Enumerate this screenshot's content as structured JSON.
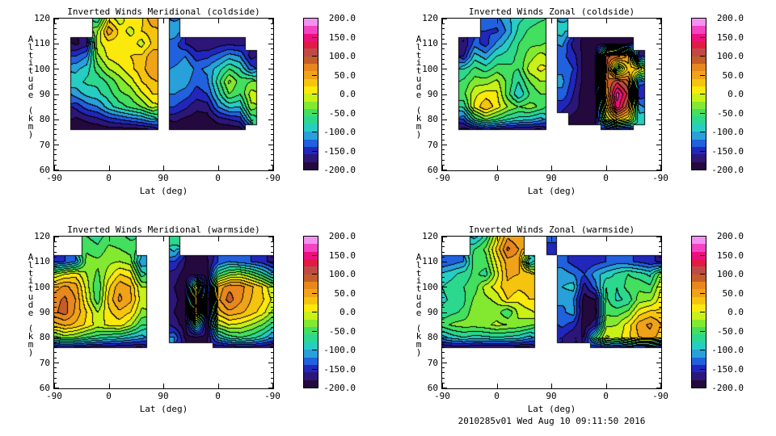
{
  "background_color": "#ffffff",
  "footer": "2010285v01 Wed Aug 10 09:11:50 2016",
  "axes": {
    "xlabel": "Lat (deg)",
    "ylabel": "Altitude (km)",
    "x_tick_labels": [
      "-90",
      "0",
      "90",
      "0",
      "-90"
    ],
    "y_tick_labels": [
      "120",
      "110",
      "100",
      "90",
      "80",
      "70",
      "60"
    ],
    "y_ticks": [
      120,
      110,
      100,
      90,
      80,
      70,
      60
    ],
    "ylim": [
      60,
      120
    ],
    "y_minor_step_km": 2
  },
  "colorbar": {
    "min": -200,
    "max": 200,
    "level_step": 20,
    "tick_labels": [
      "200.0",
      "150.0",
      "100.0",
      "50.0",
      "0.0",
      "-50.0",
      "-100.0",
      "-150.0",
      "-200.0"
    ],
    "tick_values": [
      200,
      150,
      100,
      50,
      0,
      -50,
      -100,
      -150,
      -200
    ],
    "band_colors_low_to_high": [
      "#23093e",
      "#2c1678",
      "#2127bb",
      "#2161de",
      "#28a0da",
      "#26cdc3",
      "#2cd88d",
      "#43df5f",
      "#82e930",
      "#c8f117",
      "#fbe90b",
      "#f5c40f",
      "#f0a318",
      "#e8871d",
      "#c45d28",
      "#bf4a45",
      "#e31a45",
      "#ee0f7e",
      "#f243c3",
      "#f291f0"
    ]
  },
  "grid": {
    "x_track_units": [
      0,
      0.2,
      0.4,
      0.6,
      0.8,
      1.0,
      1.2,
      1.4,
      1.6,
      1.8,
      2.0,
      2.2,
      2.4,
      2.6,
      2.8,
      3.0,
      3.2,
      3.4,
      3.6,
      3.8,
      4.0
    ],
    "x_track_note": "latitude along orbit track: -90 at 0, 0 at 1, 90 at 2, 0 at 3, -90 at 4",
    "altitudes_km": [
      120,
      115,
      110,
      105,
      100,
      95,
      90,
      85,
      80,
      76
    ],
    "value_units": "m/s"
  },
  "chart_data": [
    {
      "type": "filled_contour",
      "title": "Inverted Winds Meridional (coldside)",
      "values": [
        [
          null,
          null,
          null,
          null,
          -80,
          15,
          -15,
          20,
          15,
          60,
          null,
          -125,
          null,
          null,
          null,
          null,
          null,
          null,
          null,
          null,
          null
        ],
        [
          null,
          null,
          null,
          null,
          -20,
          55,
          15,
          -10,
          20,
          30,
          null,
          -105,
          null,
          null,
          null,
          null,
          null,
          null,
          null,
          null,
          null
        ],
        [
          null,
          null,
          -185,
          -170,
          -5,
          10,
          10,
          15,
          -10,
          25,
          null,
          -130,
          -160,
          -175,
          -180,
          -170,
          -165,
          -170,
          null,
          null,
          null
        ],
        [
          null,
          null,
          -140,
          -120,
          -25,
          5,
          15,
          20,
          25,
          55,
          null,
          -140,
          -120,
          -150,
          -145,
          -130,
          -110,
          -120,
          -170,
          null,
          null
        ],
        [
          null,
          null,
          -105,
          -90,
          -50,
          -20,
          -5,
          15,
          30,
          60,
          null,
          -115,
          -100,
          -125,
          -115,
          -90,
          -60,
          -80,
          -130,
          null,
          null
        ],
        [
          null,
          null,
          -90,
          -75,
          -75,
          -55,
          -30,
          -10,
          20,
          35,
          null,
          -105,
          -110,
          -135,
          -125,
          -70,
          -15,
          -50,
          -40,
          null,
          null
        ],
        [
          null,
          null,
          -110,
          -95,
          -85,
          -70,
          -45,
          -35,
          -5,
          20,
          null,
          -120,
          -130,
          -150,
          -140,
          -90,
          -40,
          -60,
          -10,
          null,
          null
        ],
        [
          null,
          null,
          -155,
          -130,
          -120,
          -90,
          -70,
          -55,
          -40,
          -10,
          null,
          -140,
          -155,
          -175,
          -170,
          -120,
          -95,
          -100,
          -25,
          null,
          null
        ],
        [
          null,
          null,
          -185,
          -175,
          -165,
          -150,
          -140,
          -130,
          -120,
          -100,
          null,
          -175,
          -185,
          -190,
          -190,
          -170,
          -160,
          -150,
          -80,
          null,
          null
        ],
        [
          null,
          null,
          -190,
          -195,
          -195,
          -190,
          -190,
          -190,
          -185,
          -180,
          null,
          -195,
          -195,
          -195,
          -195,
          -195,
          -195,
          -190,
          null,
          null,
          null
        ]
      ]
    },
    {
      "type": "filled_contour",
      "title": "Inverted Winds Zonal (coldside)",
      "values": [
        [
          null,
          null,
          null,
          null,
          -120,
          -125,
          -105,
          -85,
          -75,
          -65,
          null,
          -105,
          null,
          null,
          null,
          null,
          null,
          null,
          null,
          null,
          null
        ],
        [
          null,
          null,
          null,
          null,
          -140,
          -145,
          -115,
          -75,
          -55,
          -45,
          null,
          -90,
          null,
          null,
          null,
          null,
          null,
          null,
          null,
          null,
          null
        ],
        [
          null,
          null,
          -180,
          -130,
          -150,
          -115,
          -90,
          -60,
          -45,
          -45,
          null,
          -115,
          -170,
          -185,
          -190,
          -190,
          -185,
          -190,
          null,
          null,
          null
        ],
        [
          null,
          null,
          -160,
          -90,
          -110,
          -80,
          -70,
          -55,
          -30,
          -10,
          null,
          -135,
          -150,
          -190,
          -195,
          105,
          95,
          55,
          -170,
          null,
          null
        ],
        [
          null,
          null,
          -80,
          -55,
          -70,
          -50,
          -55,
          -60,
          -10,
          5,
          null,
          -125,
          -140,
          -190,
          -195,
          115,
          -75,
          30,
          25,
          null,
          null
        ],
        [
          null,
          null,
          -55,
          -30,
          -30,
          -15,
          -45,
          -80,
          -40,
          -20,
          null,
          -115,
          -150,
          -190,
          -190,
          75,
          115,
          85,
          -130,
          null,
          null
        ],
        [
          null,
          null,
          -45,
          -5,
          10,
          5,
          -50,
          -100,
          -60,
          -40,
          null,
          -125,
          -160,
          -195,
          -195,
          60,
          170,
          115,
          -160,
          null,
          null
        ],
        [
          null,
          null,
          -75,
          5,
          40,
          10,
          -20,
          -40,
          -30,
          -45,
          null,
          -155,
          -170,
          -190,
          -195,
          25,
          155,
          85,
          -110,
          null,
          null
        ],
        [
          null,
          null,
          -140,
          -70,
          -40,
          -60,
          -80,
          -90,
          -95,
          -110,
          null,
          null,
          -190,
          -195,
          -190,
          -15,
          35,
          5,
          -90,
          null,
          null
        ],
        [
          null,
          null,
          -190,
          -175,
          -160,
          -170,
          -175,
          -180,
          -180,
          -185,
          null,
          null,
          null,
          null,
          null,
          -170,
          -155,
          -165,
          null,
          null,
          null
        ]
      ]
    },
    {
      "type": "filled_contour",
      "title": "Inverted Winds Meridional (warmside)",
      "values": [
        [
          null,
          null,
          null,
          -60,
          -70,
          -50,
          -55,
          -65,
          null,
          null,
          null,
          -60,
          null,
          null,
          null,
          null,
          null,
          null,
          null,
          null,
          null
        ],
        [
          null,
          null,
          null,
          -45,
          -55,
          -35,
          -40,
          -50,
          null,
          null,
          null,
          -90,
          null,
          null,
          null,
          null,
          null,
          null,
          null,
          null,
          null
        ],
        [
          -150,
          -140,
          -120,
          -30,
          -35,
          -25,
          -20,
          -30,
          -120,
          null,
          null,
          -140,
          -180,
          -185,
          -185,
          -140,
          -120,
          -130,
          -140,
          -150,
          -170
        ],
        [
          -20,
          0,
          10,
          -20,
          -45,
          -10,
          20,
          10,
          -70,
          null,
          null,
          -170,
          -190,
          -190,
          -190,
          -60,
          -30,
          -20,
          -40,
          -70,
          -110
        ],
        [
          50,
          65,
          50,
          -10,
          -60,
          15,
          55,
          40,
          -20,
          null,
          null,
          -180,
          -195,
          20,
          -190,
          45,
          75,
          70,
          45,
          20,
          -20
        ],
        [
          70,
          85,
          60,
          0,
          -55,
          25,
          65,
          45,
          -10,
          null,
          null,
          -175,
          -190,
          60,
          -195,
          55,
          90,
          65,
          40,
          25,
          -5
        ],
        [
          75,
          90,
          55,
          20,
          -20,
          15,
          35,
          20,
          -25,
          null,
          null,
          -180,
          -195,
          80,
          -190,
          30,
          55,
          45,
          30,
          10,
          -25
        ],
        [
          30,
          45,
          35,
          15,
          -10,
          5,
          10,
          -15,
          -60,
          null,
          null,
          -170,
          -190,
          -60,
          -195,
          -20,
          0,
          -5,
          -20,
          -40,
          -70
        ],
        [
          -50,
          -30,
          -40,
          -60,
          -70,
          -80,
          -85,
          -100,
          -110,
          null,
          null,
          -120,
          -185,
          -185,
          -185,
          -100,
          -70,
          -60,
          -70,
          -90,
          -120
        ],
        [
          -165,
          -160,
          -165,
          -170,
          -175,
          -175,
          -180,
          -180,
          -185,
          null,
          null,
          null,
          null,
          null,
          null,
          -180,
          -175,
          -170,
          -170,
          -175,
          -185
        ]
      ]
    },
    {
      "type": "filled_contour",
      "title": "Inverted Winds Zonal (warmside)",
      "values": [
        [
          null,
          null,
          null,
          -110,
          -70,
          0,
          55,
          40,
          null,
          null,
          -130,
          null,
          null,
          null,
          null,
          null,
          null,
          null,
          null,
          null,
          null
        ],
        [
          null,
          null,
          null,
          -60,
          -35,
          25,
          85,
          60,
          null,
          null,
          -150,
          null,
          null,
          null,
          null,
          null,
          null,
          null,
          null,
          null,
          null
        ],
        [
          -140,
          -130,
          -120,
          -45,
          -50,
          5,
          50,
          50,
          -100,
          null,
          null,
          -130,
          -150,
          -160,
          -150,
          -140,
          -130,
          -135,
          -145,
          -155,
          -165
        ],
        [
          -95,
          -85,
          -70,
          -55,
          -70,
          -10,
          45,
          40,
          35,
          null,
          null,
          -110,
          -120,
          -140,
          -110,
          -90,
          -75,
          -60,
          -70,
          -85,
          -30
        ],
        [
          -80,
          -70,
          -60,
          -50,
          -10,
          10,
          35,
          25,
          30,
          null,
          null,
          -100,
          -90,
          -170,
          -130,
          -60,
          -80,
          -50,
          -45,
          -55,
          0
        ],
        [
          -85,
          -75,
          -65,
          -35,
          -25,
          -15,
          20,
          5,
          20,
          null,
          null,
          -115,
          -120,
          -190,
          -180,
          -55,
          -85,
          -75,
          -30,
          -25,
          10
        ],
        [
          -75,
          -65,
          -55,
          -25,
          -35,
          -30,
          -60,
          -15,
          -5,
          null,
          null,
          -125,
          -110,
          -195,
          -190,
          -45,
          -50,
          -35,
          10,
          25,
          25
        ],
        [
          -50,
          -35,
          -30,
          -30,
          -25,
          -15,
          -20,
          -25,
          -35,
          null,
          null,
          -135,
          -150,
          -190,
          -170,
          -25,
          -20,
          10,
          50,
          65,
          40
        ],
        [
          -110,
          -90,
          -80,
          -90,
          -85,
          -80,
          -85,
          -90,
          -110,
          null,
          null,
          -160,
          -180,
          -180,
          -60,
          5,
          -10,
          15,
          40,
          50,
          30
        ],
        [
          -180,
          -175,
          -175,
          -180,
          -180,
          -180,
          -180,
          -185,
          -185,
          null,
          null,
          null,
          null,
          null,
          -160,
          -150,
          -160,
          -150,
          -140,
          -150,
          -165
        ]
      ]
    }
  ]
}
